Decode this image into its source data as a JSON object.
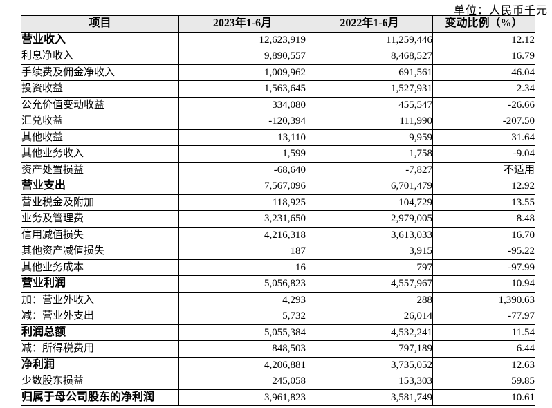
{
  "unit_note": "单位：人民币千元",
  "table": {
    "columns": [
      "项目",
      "2023年1-6月",
      "2022年1-6月",
      "变动比例（%）"
    ],
    "rows": [
      {
        "label": "营业收入",
        "v2023": "12,623,919",
        "v2022": "11,259,446",
        "change": "12.12",
        "bold": true
      },
      {
        "label": "利息净收入",
        "v2023": "9,890,557",
        "v2022": "8,468,527",
        "change": "16.79",
        "bold": false
      },
      {
        "label": "手续费及佣金净收入",
        "v2023": "1,009,962",
        "v2022": "691,561",
        "change": "46.04",
        "bold": false
      },
      {
        "label": "投资收益",
        "v2023": "1,563,645",
        "v2022": "1,527,931",
        "change": "2.34",
        "bold": false
      },
      {
        "label": "公允价值变动收益",
        "v2023": "334,080",
        "v2022": "455,547",
        "change": "-26.66",
        "bold": false
      },
      {
        "label": "汇兑收益",
        "v2023": "-120,394",
        "v2022": "111,990",
        "change": "-207.50",
        "bold": false
      },
      {
        "label": "其他收益",
        "v2023": "13,110",
        "v2022": "9,959",
        "change": "31.64",
        "bold": false
      },
      {
        "label": "其他业务收入",
        "v2023": "1,599",
        "v2022": "1,758",
        "change": "-9.04",
        "bold": false
      },
      {
        "label": "资产处置损益",
        "v2023": "-68,640",
        "v2022": "-7,827",
        "change": "不适用",
        "bold": false
      },
      {
        "label": "营业支出",
        "v2023": "7,567,096",
        "v2022": "6,701,479",
        "change": "12.92",
        "bold": true
      },
      {
        "label": "营业税金及附加",
        "v2023": "118,925",
        "v2022": "104,729",
        "change": "13.55",
        "bold": false
      },
      {
        "label": "业务及管理费",
        "v2023": "3,231,650",
        "v2022": "2,979,005",
        "change": "8.48",
        "bold": false
      },
      {
        "label": "信用减值损失",
        "v2023": "4,216,318",
        "v2022": "3,613,033",
        "change": "16.70",
        "bold": false
      },
      {
        "label": "其他资产减值损失",
        "v2023": "187",
        "v2022": "3,915",
        "change": "-95.22",
        "bold": false
      },
      {
        "label": "其他业务成本",
        "v2023": "16",
        "v2022": "797",
        "change": "-97.99",
        "bold": false
      },
      {
        "label": "营业利润",
        "v2023": "5,056,823",
        "v2022": "4,557,967",
        "change": "10.94",
        "bold": true
      },
      {
        "label": "加：营业外收入",
        "v2023": "4,293",
        "v2022": "288",
        "change": "1,390.63",
        "bold": false
      },
      {
        "label": "减：营业外支出",
        "v2023": "5,732",
        "v2022": "26,014",
        "change": "-77.97",
        "bold": false
      },
      {
        "label": "利润总额",
        "v2023": "5,055,384",
        "v2022": "4,532,241",
        "change": "11.54",
        "bold": true
      },
      {
        "label": "减：所得税费用",
        "v2023": "848,503",
        "v2022": "797,189",
        "change": "6.44",
        "bold": false
      },
      {
        "label": "净利润",
        "v2023": "4,206,881",
        "v2022": "3,735,052",
        "change": "12.63",
        "bold": true
      },
      {
        "label": "少数股东损益",
        "v2023": "245,058",
        "v2022": "153,303",
        "change": "59.85",
        "bold": false
      },
      {
        "label": "归属于母公司股东的净利润",
        "v2023": "3,961,823",
        "v2022": "3,581,749",
        "change": "10.61",
        "bold": true
      }
    ]
  }
}
